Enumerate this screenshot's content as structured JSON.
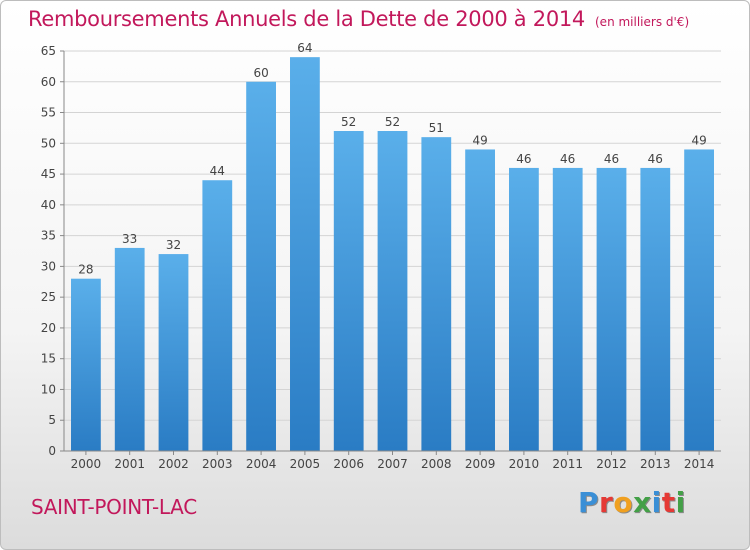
{
  "title": "Remboursements Annuels de la Dette de 2000 à 2014",
  "subtitle": "(en milliers d'€)",
  "commune": "SAINT-POINT-LAC",
  "logo": {
    "letters": [
      "P",
      "r",
      "o",
      "x",
      "i",
      "t",
      "i"
    ],
    "colors": [
      "#3a8fd6",
      "#e53935",
      "#f0a020",
      "#43a047",
      "#3a8fd6",
      "#e53935",
      "#43a047"
    ]
  },
  "chart_data": {
    "type": "bar",
    "title": "Remboursements Annuels de la Dette de 2000 à 2014",
    "subtitle": "(en milliers d'€)",
    "categories": [
      "2000",
      "2001",
      "2002",
      "2003",
      "2004",
      "2005",
      "2006",
      "2007",
      "2008",
      "2009",
      "2010",
      "2011",
      "2012",
      "2013",
      "2014"
    ],
    "values": [
      28,
      33,
      32,
      44,
      60,
      64,
      52,
      52,
      51,
      49,
      46,
      46,
      46,
      46,
      49
    ],
    "ylim": [
      0,
      65
    ],
    "yticks": [
      0,
      5,
      10,
      15,
      20,
      25,
      30,
      35,
      40,
      45,
      50,
      55,
      60,
      65
    ],
    "grid": true,
    "bar_color": "#4a9de0"
  }
}
